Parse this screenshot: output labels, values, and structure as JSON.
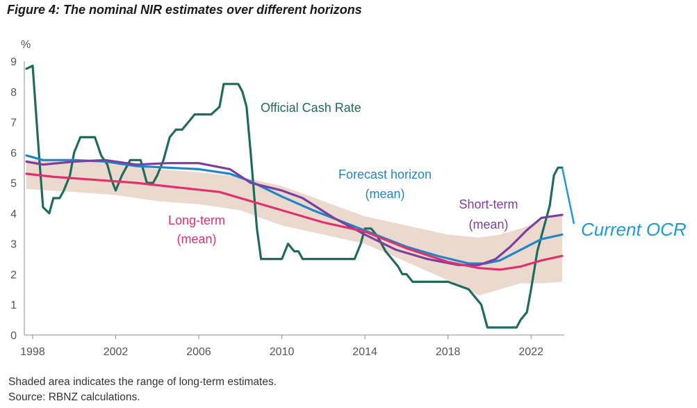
{
  "figure": {
    "title": "Figure 4: The nominal NIR estimates over different horizons",
    "notes": [
      "Shaded area indicates the range of long-term estimates.",
      "Source: RBNZ calculations."
    ]
  },
  "chart_data": {
    "type": "line",
    "title": "Figure 4: The nominal NIR estimates over different horizons",
    "ylabel": "%",
    "xlabel": "",
    "xlim": [
      1997.6,
      2023.6
    ],
    "ylim": [
      0,
      9
    ],
    "x_ticks": [
      1998,
      2002,
      2006,
      2010,
      2014,
      2018,
      2022
    ],
    "y_ticks": [
      0,
      1,
      2,
      3,
      4,
      5,
      6,
      7,
      8,
      9
    ],
    "grid": false,
    "colors": {
      "ocr": "#1f6b5c",
      "forecast": "#1f86c8",
      "short_term": "#7b3f9e",
      "long_term": "#e0306e",
      "range": "#ecd9cd",
      "annotation": "#1c9ad6"
    },
    "series": [
      {
        "name": "Official Cash Rate",
        "key": "ocr",
        "x": [
          1997.7,
          1998.0,
          1998.3,
          1998.5,
          1998.8,
          1999.0,
          1999.3,
          1999.5,
          1999.8,
          2000.0,
          2000.3,
          2000.7,
          2001.0,
          2001.3,
          2001.6,
          2001.8,
          2002.0,
          2002.3,
          2002.7,
          2002.9,
          2003.2,
          2003.5,
          2003.8,
          2004.0,
          2004.3,
          2004.6,
          2004.9,
          2005.2,
          2005.5,
          2005.8,
          2006.2,
          2006.6,
          2007.0,
          2007.2,
          2007.5,
          2007.9,
          2008.1,
          2008.3,
          2008.5,
          2008.8,
          2009.0,
          2009.3,
          2009.8,
          2010.0,
          2010.3,
          2010.6,
          2010.8,
          2011.0,
          2011.3,
          2012.0,
          2013.0,
          2013.5,
          2013.8,
          2014.0,
          2014.3,
          2014.6,
          2014.8,
          2015.0,
          2015.3,
          2015.6,
          2015.8,
          2016.0,
          2016.3,
          2016.6,
          2016.9,
          2018.0,
          2019.0,
          2019.3,
          2019.6,
          2019.9,
          2020.1,
          2020.3,
          2021.0,
          2021.3,
          2021.5,
          2021.8,
          2022.0,
          2022.3,
          2022.6,
          2022.9,
          2023.1,
          2023.3,
          2023.5
        ],
        "values": [
          8.75,
          8.85,
          6.0,
          4.2,
          4.0,
          4.5,
          4.5,
          4.75,
          5.25,
          6.0,
          6.5,
          6.5,
          6.5,
          5.9,
          5.6,
          5.1,
          4.75,
          5.25,
          5.75,
          5.75,
          5.75,
          5.0,
          5.0,
          5.25,
          5.75,
          6.5,
          6.75,
          6.75,
          7.0,
          7.25,
          7.25,
          7.25,
          7.5,
          8.25,
          8.25,
          8.25,
          8.0,
          7.5,
          6.0,
          3.5,
          2.5,
          2.5,
          2.5,
          2.5,
          3.0,
          2.75,
          2.75,
          2.5,
          2.5,
          2.5,
          2.5,
          2.5,
          3.0,
          3.5,
          3.5,
          3.25,
          3.0,
          2.75,
          2.5,
          2.25,
          2.0,
          2.0,
          1.75,
          1.75,
          1.75,
          1.75,
          1.5,
          1.25,
          1.0,
          0.25,
          0.25,
          0.25,
          0.25,
          0.25,
          0.5,
          0.75,
          1.5,
          2.75,
          3.5,
          4.25,
          5.25,
          5.5,
          5.5
        ]
      },
      {
        "name": "Forecast horizon (mean)",
        "key": "forecast",
        "x": [
          1997.7,
          1998.5,
          2000.0,
          2001.5,
          2003.0,
          2004.5,
          2006.0,
          2007.5,
          2008.5,
          2010.0,
          2011.5,
          2013.0,
          2014.5,
          2016.0,
          2017.5,
          2019.0,
          2019.8,
          2020.5,
          2021.5,
          2022.5,
          2023.5
        ],
        "values": [
          5.9,
          5.75,
          5.75,
          5.7,
          5.55,
          5.5,
          5.45,
          5.3,
          5.05,
          4.55,
          4.1,
          3.7,
          3.3,
          2.9,
          2.6,
          2.35,
          2.35,
          2.45,
          2.8,
          3.15,
          3.3
        ]
      },
      {
        "name": "Short-term (mean)",
        "key": "short_term",
        "x": [
          1997.7,
          1998.5,
          2000.0,
          2001.5,
          2003.0,
          2004.5,
          2006.0,
          2007.5,
          2008.5,
          2010.0,
          2011.0,
          2012.5,
          2014.0,
          2015.5,
          2017.0,
          2018.5,
          2019.5,
          2020.3,
          2021.0,
          2021.8,
          2022.5,
          2023.5
        ],
        "values": [
          5.7,
          5.6,
          5.7,
          5.75,
          5.6,
          5.65,
          5.65,
          5.45,
          5.0,
          4.75,
          4.5,
          3.85,
          3.3,
          2.8,
          2.5,
          2.3,
          2.3,
          2.5,
          2.9,
          3.45,
          3.85,
          3.95
        ]
      },
      {
        "name": "Long-term (mean)",
        "key": "long_term",
        "x": [
          1997.7,
          1999.0,
          2001.0,
          2003.0,
          2005.0,
          2007.0,
          2008.5,
          2010.0,
          2012.0,
          2014.0,
          2016.0,
          2018.0,
          2019.5,
          2020.5,
          2021.5,
          2022.5,
          2023.5
        ],
        "values": [
          5.3,
          5.2,
          5.1,
          5.0,
          4.85,
          4.7,
          4.4,
          4.1,
          3.7,
          3.4,
          2.85,
          2.4,
          2.2,
          2.15,
          2.25,
          2.45,
          2.6
        ]
      }
    ],
    "range_band": {
      "x": [
        1997.7,
        2000.0,
        2002.0,
        2004.0,
        2006.0,
        2008.0,
        2010.0,
        2012.0,
        2014.0,
        2016.0,
        2018.0,
        2019.5,
        2020.5,
        2021.5,
        2022.5,
        2023.5
      ],
      "low": [
        4.8,
        4.7,
        4.6,
        4.4,
        4.3,
        4.1,
        3.6,
        3.3,
        3.0,
        2.4,
        1.8,
        1.3,
        1.5,
        1.7,
        1.7,
        1.75
      ],
      "high": [
        5.75,
        5.75,
        5.6,
        5.45,
        5.35,
        5.2,
        4.9,
        4.4,
        3.9,
        3.6,
        3.3,
        3.2,
        3.3,
        3.5,
        3.75,
        3.95
      ]
    },
    "annotations": [
      {
        "text": "Official Cash Rate",
        "key": "ocr"
      },
      {
        "text": "Forecast horizon",
        "key": "forecast"
      },
      {
        "text": "(mean)",
        "key": "forecast"
      },
      {
        "text": "Short-term",
        "key": "short_term"
      },
      {
        "text": "(mean)",
        "key": "short_term"
      },
      {
        "text": "Long-term",
        "key": "long_term"
      },
      {
        "text": "(mean)",
        "key": "long_term"
      }
    ],
    "callout": {
      "text": "Current OCR",
      "key": "annotation"
    }
  }
}
